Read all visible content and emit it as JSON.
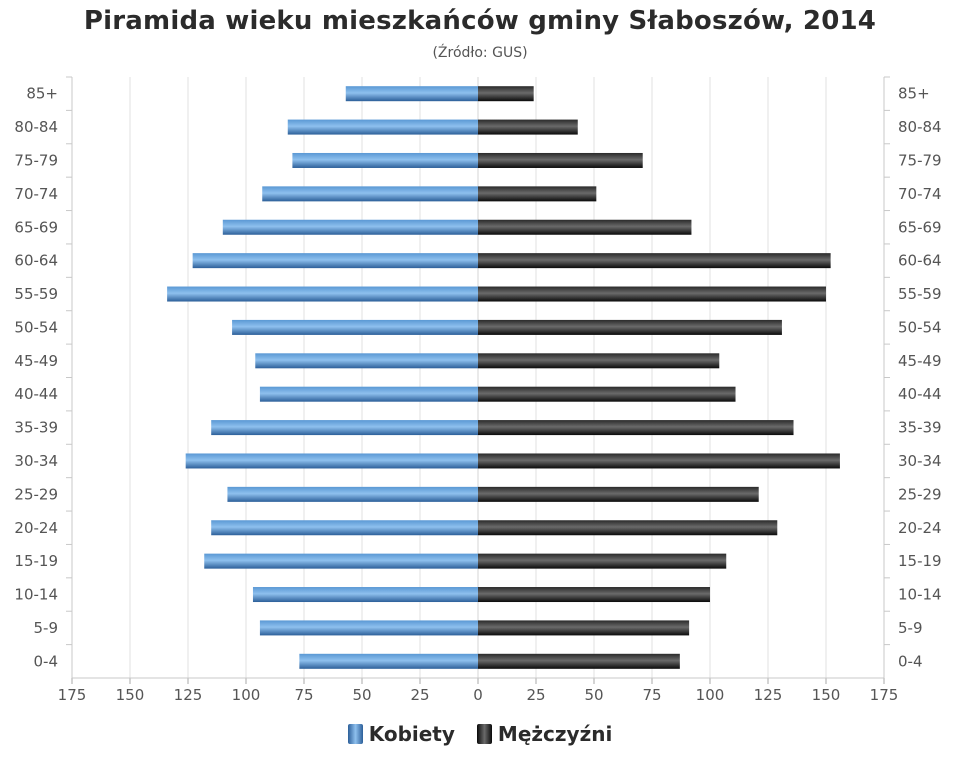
{
  "chart_data": {
    "type": "bar",
    "orientation": "population-pyramid",
    "title": "Piramida wieku mieszkańców gminy Słaboszów, 2014",
    "subtitle": "(Źródło: GUS)",
    "categories": [
      "0-4",
      "5-9",
      "10-14",
      "15-19",
      "20-24",
      "25-29",
      "30-34",
      "35-39",
      "40-44",
      "45-49",
      "50-54",
      "55-59",
      "60-64",
      "65-69",
      "70-74",
      "75-79",
      "80-84",
      "85+"
    ],
    "series": [
      {
        "name": "Kobiety",
        "color": "#3d7ab8",
        "values": [
          77,
          94,
          97,
          118,
          115,
          108,
          126,
          115,
          94,
          96,
          106,
          134,
          123,
          110,
          93,
          80,
          82,
          57
        ]
      },
      {
        "name": "Mężczyźni",
        "color": "#1a1a1a",
        "values": [
          87,
          91,
          100,
          107,
          129,
          121,
          156,
          136,
          111,
          104,
          131,
          150,
          152,
          92,
          51,
          71,
          43,
          24
        ]
      }
    ],
    "x_ticks": [
      "175",
      "150",
      "125",
      "100",
      "75",
      "50",
      "25",
      "0",
      "25",
      "50",
      "75",
      "100",
      "125",
      "150",
      "175"
    ],
    "xlim": [
      -175,
      175
    ],
    "grid": true,
    "legend_position": "bottom-center"
  }
}
